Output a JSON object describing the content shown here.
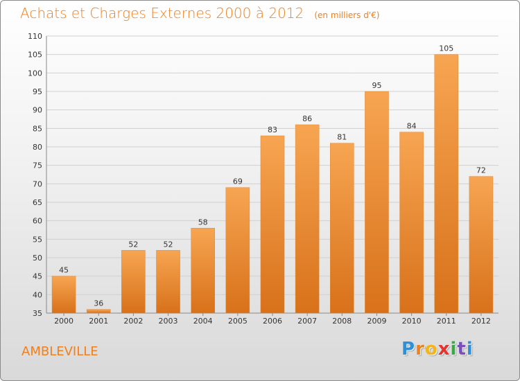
{
  "header": {
    "title": "Achats et Charges Externes 2000 à 2012",
    "subtitle": "(en milliers d'€)"
  },
  "footer": {
    "commune": "AMBLEVILLE",
    "brand_letters": [
      "P",
      "r",
      "o",
      "x",
      "i",
      "t",
      "i"
    ]
  },
  "colors": {
    "accent": "#f07f1c",
    "bar_top": "#f7a552",
    "bar_bottom": "#d8711a",
    "brand": [
      "#2f8fd8",
      "#f07f1c",
      "#f5b51a",
      "#e8312f",
      "#3aa845",
      "#7a4fb8",
      "#2f8fd8"
    ]
  },
  "chart_data": {
    "type": "bar",
    "title": "Achats et Charges Externes 2000 à 2012",
    "subtitle": "(en milliers d'€)",
    "categories": [
      "2000",
      "2001",
      "2002",
      "2003",
      "2004",
      "2005",
      "2006",
      "2007",
      "2008",
      "2009",
      "2010",
      "2011",
      "2012"
    ],
    "values": [
      45,
      36,
      52,
      52,
      58,
      69,
      83,
      86,
      81,
      95,
      84,
      105,
      72
    ],
    "ylim": [
      35,
      110
    ],
    "yticks": [
      35,
      40,
      45,
      50,
      55,
      60,
      65,
      70,
      75,
      80,
      85,
      90,
      95,
      100,
      105,
      110
    ],
    "grid": true,
    "xlabel": "",
    "ylabel": ""
  }
}
